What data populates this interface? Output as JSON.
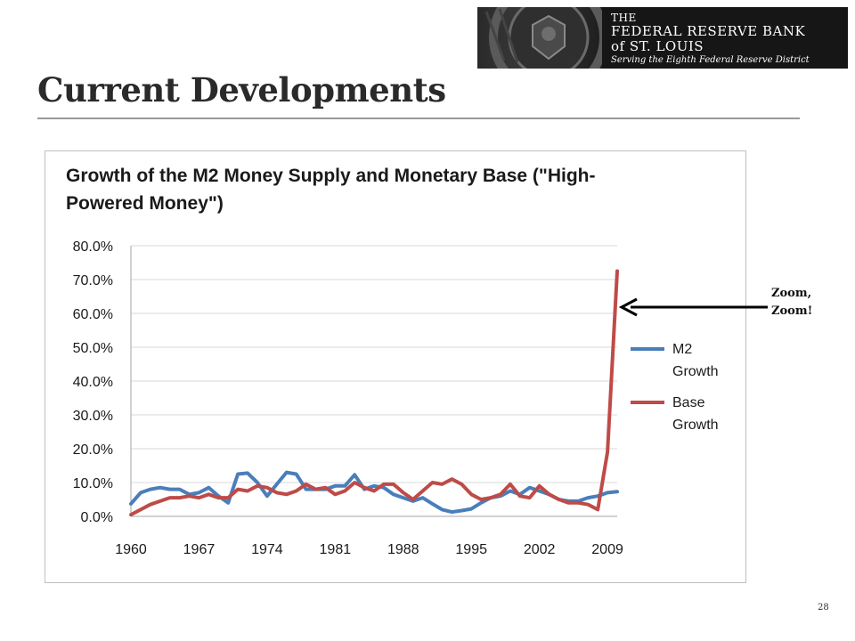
{
  "header": {
    "logo": {
      "line1": "THE",
      "line2": "FEDERAL RESERVE BANK",
      "line3": "of ST. LOUIS",
      "tagline": "Serving the Eighth Federal Reserve District"
    }
  },
  "slide": {
    "title": "Current Developments",
    "number": "28"
  },
  "annotation": {
    "line1": "Zoom,",
    "line2": "Zoom!"
  },
  "colors": {
    "m2": "#4a7ebb",
    "base": "#be4b48",
    "grid": "#d9d9d9",
    "arrow": "#000000"
  },
  "chart_data": {
    "type": "line",
    "title": "Growth of the M2 Money Supply and Monetary Base (\"High-Powered Money\")",
    "xlabel": "",
    "ylabel": "",
    "x": [
      1960,
      1961,
      1962,
      1963,
      1964,
      1965,
      1966,
      1967,
      1968,
      1969,
      1970,
      1971,
      1972,
      1973,
      1974,
      1975,
      1976,
      1977,
      1978,
      1979,
      1980,
      1981,
      1982,
      1983,
      1984,
      1985,
      1986,
      1987,
      1988,
      1989,
      1990,
      1991,
      1992,
      1993,
      1994,
      1995,
      1996,
      1997,
      1998,
      1999,
      2000,
      2001,
      2002,
      2003,
      2004,
      2005,
      2006,
      2007,
      2008,
      2009,
      2010
    ],
    "x_ticks": [
      "1960",
      "1967",
      "1974",
      "1981",
      "1988",
      "1995",
      "2002",
      "2009"
    ],
    "x_tick_values": [
      1960,
      1967,
      1974,
      1981,
      1988,
      1995,
      2002,
      2009
    ],
    "y_ticks": [
      "0.0%",
      "10.0%",
      "20.0%",
      "30.0%",
      "40.0%",
      "50.0%",
      "60.0%",
      "70.0%",
      "80.0%"
    ],
    "ylim": [
      0,
      80
    ],
    "grid": true,
    "legend_position": "right",
    "series": [
      {
        "name": "M2 Growth",
        "values": [
          3.7,
          7.0,
          8.0,
          8.5,
          8.0,
          8.0,
          6.5,
          7.0,
          8.5,
          6.0,
          4.0,
          12.5,
          12.8,
          10.0,
          6.0,
          9.5,
          13.0,
          12.5,
          8.0,
          8.0,
          8.0,
          9.0,
          9.0,
          12.3,
          8.0,
          9.0,
          8.5,
          6.5,
          5.5,
          4.5,
          5.5,
          3.7,
          2.0,
          1.3,
          1.7,
          2.2,
          4.0,
          5.5,
          6.0,
          7.5,
          6.5,
          8.5,
          7.5,
          6.5,
          5.0,
          4.5,
          4.5,
          5.5,
          6.0,
          7.0,
          7.3
        ]
      },
      {
        "name": "Base Growth",
        "values": [
          0.5,
          2.0,
          3.5,
          4.5,
          5.5,
          5.5,
          6.0,
          5.5,
          6.5,
          5.5,
          5.5,
          8.0,
          7.5,
          9.0,
          8.5,
          7.0,
          6.5,
          7.5,
          9.5,
          8.0,
          8.5,
          6.5,
          7.5,
          10.0,
          8.5,
          7.5,
          9.5,
          9.5,
          7.0,
          5.0,
          7.5,
          10.0,
          9.5,
          11.0,
          9.5,
          6.5,
          5.0,
          5.5,
          6.5,
          9.5,
          6.0,
          5.5,
          9.0,
          6.5,
          5.0,
          4.0,
          4.0,
          3.5,
          2.0,
          19.0,
          72.5
        ]
      }
    ]
  }
}
